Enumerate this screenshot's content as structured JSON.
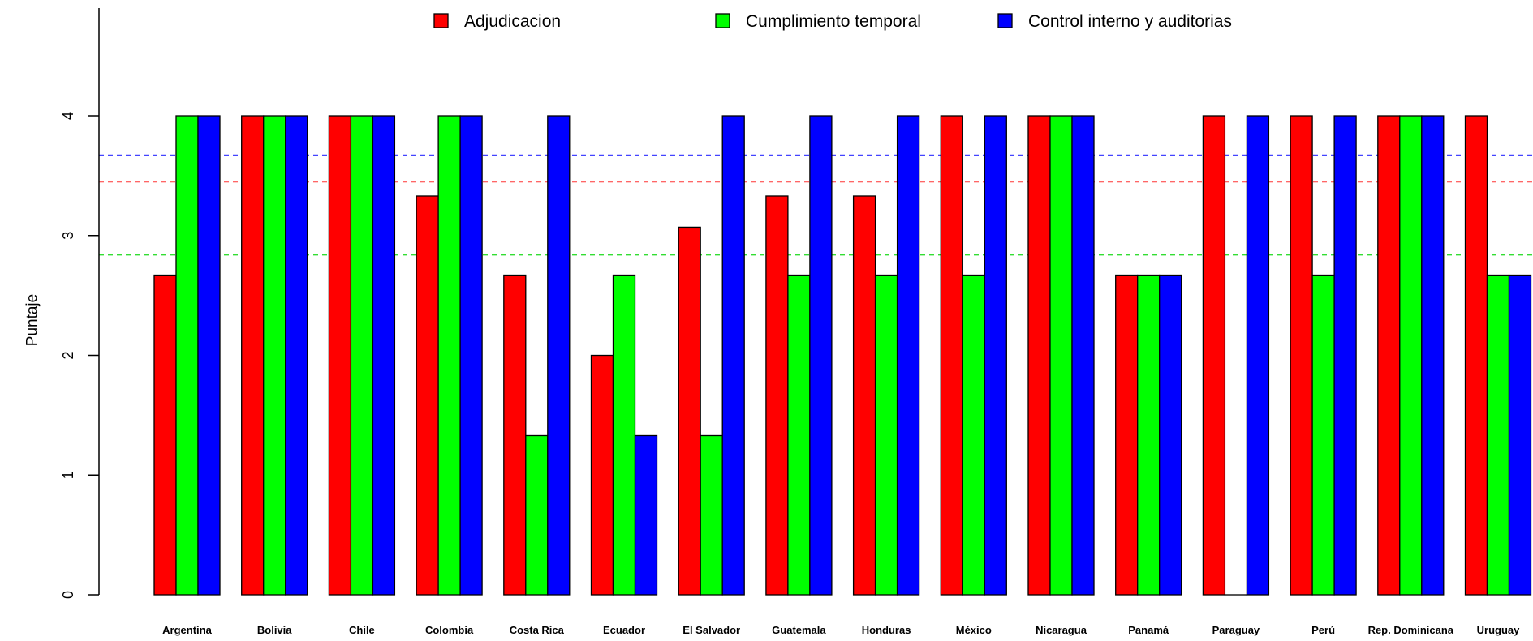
{
  "chart_data": {
    "type": "bar",
    "title": "",
    "xlabel": "",
    "ylabel": "Puntaje",
    "ylim": [
      0,
      4
    ],
    "yticks": [
      "0",
      "1",
      "2",
      "3",
      "4"
    ],
    "grid": false,
    "legend_position": "top",
    "categories": [
      "Argentina",
      "Bolivia",
      "Chile",
      "Colombia",
      "Costa Rica",
      "Ecuador",
      "El Salvador",
      "Guatemala",
      "Honduras",
      "México",
      "Nicaragua",
      "Panamá",
      "Paraguay",
      "Perú",
      "Rep. Dominicana",
      "Uruguay"
    ],
    "series": [
      {
        "name": "Adjudicacion",
        "color": "#ff0000",
        "values": [
          2.67,
          4,
          4,
          3.33,
          2.67,
          2,
          3.07,
          3.33,
          3.33,
          4,
          4,
          2.67,
          4,
          4,
          4,
          4
        ]
      },
      {
        "name": "Cumplimiento temporal",
        "color": "#00ff00",
        "values": [
          4,
          4,
          4,
          4,
          1.33,
          2.67,
          1.33,
          2.67,
          2.67,
          2.67,
          4,
          2.67,
          0,
          2.67,
          4,
          2.67
        ]
      },
      {
        "name": "Control interno y auditorias",
        "color": "#0000ff",
        "values": [
          4,
          4,
          4,
          4,
          4,
          1.33,
          4,
          4,
          4,
          4,
          4,
          2.67,
          4,
          4,
          4,
          2.67
        ]
      }
    ],
    "reference_lines": [
      {
        "series": "Control interno y auditorias",
        "value": 3.67,
        "color": "#4444ff"
      },
      {
        "series": "Adjudicacion",
        "value": 3.45,
        "color": "#ff3333"
      },
      {
        "series": "Cumplimiento temporal",
        "value": 2.84,
        "color": "#33dd33"
      }
    ]
  }
}
